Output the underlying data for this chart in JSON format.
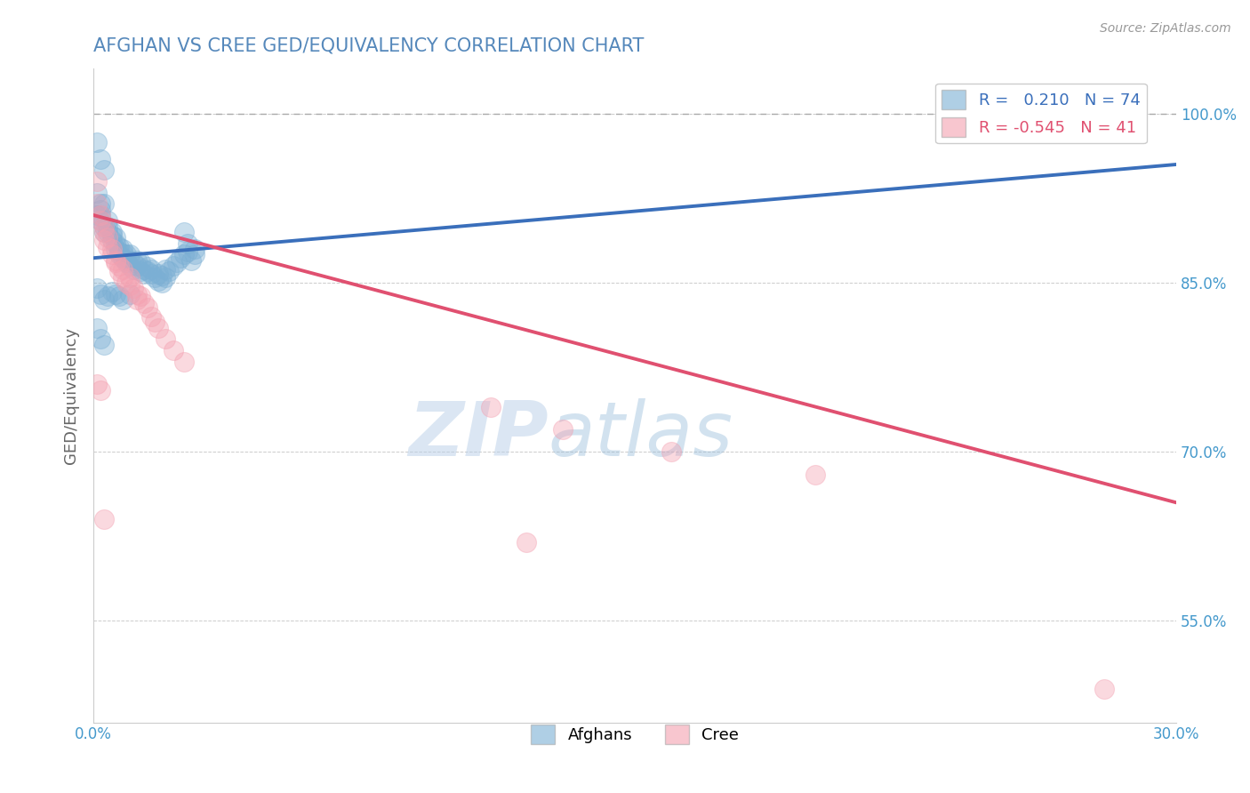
{
  "title": "AFGHAN VS CREE GED/EQUIVALENCY CORRELATION CHART",
  "source": "Source: ZipAtlas.com",
  "ylabel": "GED/Equivalency",
  "xlim": [
    0.0,
    0.3
  ],
  "ylim": [
    0.46,
    1.04
  ],
  "afghan_color": "#7bafd4",
  "cree_color": "#f4a0b0",
  "afghan_R": 0.21,
  "afghan_N": 74,
  "cree_R": -0.545,
  "cree_N": 41,
  "legend_label_afghan": "Afghans",
  "legend_label_cree": "Cree",
  "watermark_zip": "ZIP",
  "watermark_atlas": "atlas",
  "title_color": "#5588bb",
  "axis_label_color": "#666666",
  "tick_color": "#4499cc",
  "ytick_positions": [
    0.55,
    0.7,
    0.85,
    1.0
  ],
  "ytick_labels": [
    "55.0%",
    "70.0%",
    "85.0%",
    "100.0%"
  ],
  "afghan_line": [
    [
      0.0,
      0.872
    ],
    [
      0.3,
      0.955
    ]
  ],
  "cree_line": [
    [
      0.0,
      0.91
    ],
    [
      0.3,
      0.655
    ]
  ],
  "dashed_line_y": 1.0,
  "afghan_scatter": [
    [
      0.001,
      0.975
    ],
    [
      0.002,
      0.96
    ],
    [
      0.003,
      0.95
    ],
    [
      0.001,
      0.93
    ],
    [
      0.002,
      0.92
    ],
    [
      0.002,
      0.915
    ],
    [
      0.001,
      0.91
    ],
    [
      0.002,
      0.91
    ],
    [
      0.003,
      0.92
    ],
    [
      0.002,
      0.905
    ],
    [
      0.003,
      0.9
    ],
    [
      0.004,
      0.905
    ],
    [
      0.003,
      0.895
    ],
    [
      0.004,
      0.895
    ],
    [
      0.004,
      0.9
    ],
    [
      0.005,
      0.892
    ],
    [
      0.005,
      0.888
    ],
    [
      0.005,
      0.895
    ],
    [
      0.006,
      0.885
    ],
    [
      0.006,
      0.89
    ],
    [
      0.006,
      0.88
    ],
    [
      0.007,
      0.882
    ],
    [
      0.007,
      0.878
    ],
    [
      0.007,
      0.875
    ],
    [
      0.008,
      0.88
    ],
    [
      0.008,
      0.876
    ],
    [
      0.008,
      0.872
    ],
    [
      0.009,
      0.875
    ],
    [
      0.009,
      0.87
    ],
    [
      0.009,
      0.868
    ],
    [
      0.01,
      0.87
    ],
    [
      0.01,
      0.875
    ],
    [
      0.01,
      0.865
    ],
    [
      0.011,
      0.868
    ],
    [
      0.011,
      0.862
    ],
    [
      0.012,
      0.87
    ],
    [
      0.012,
      0.865
    ],
    [
      0.013,
      0.868
    ],
    [
      0.013,
      0.86
    ],
    [
      0.014,
      0.862
    ],
    [
      0.014,
      0.858
    ],
    [
      0.015,
      0.864
    ],
    [
      0.015,
      0.86
    ],
    [
      0.016,
      0.858
    ],
    [
      0.016,
      0.862
    ],
    [
      0.017,
      0.855
    ],
    [
      0.018,
      0.858
    ],
    [
      0.018,
      0.852
    ],
    [
      0.019,
      0.856
    ],
    [
      0.019,
      0.85
    ],
    [
      0.02,
      0.855
    ],
    [
      0.02,
      0.862
    ],
    [
      0.021,
      0.86
    ],
    [
      0.022,
      0.865
    ],
    [
      0.023,
      0.868
    ],
    [
      0.024,
      0.872
    ],
    [
      0.025,
      0.875
    ],
    [
      0.026,
      0.878
    ],
    [
      0.027,
      0.87
    ],
    [
      0.028,
      0.875
    ],
    [
      0.025,
      0.895
    ],
    [
      0.026,
      0.885
    ],
    [
      0.028,
      0.88
    ],
    [
      0.001,
      0.845
    ],
    [
      0.002,
      0.84
    ],
    [
      0.003,
      0.835
    ],
    [
      0.004,
      0.838
    ],
    [
      0.005,
      0.842
    ],
    [
      0.006,
      0.84
    ],
    [
      0.007,
      0.838
    ],
    [
      0.008,
      0.835
    ],
    [
      0.01,
      0.84
    ],
    [
      0.001,
      0.81
    ],
    [
      0.002,
      0.8
    ],
    [
      0.003,
      0.795
    ]
  ],
  "cree_scatter": [
    [
      0.001,
      0.94
    ],
    [
      0.001,
      0.92
    ],
    [
      0.002,
      0.91
    ],
    [
      0.002,
      0.905
    ],
    [
      0.003,
      0.9
    ],
    [
      0.003,
      0.895
    ],
    [
      0.003,
      0.888
    ],
    [
      0.004,
      0.89
    ],
    [
      0.004,
      0.882
    ],
    [
      0.005,
      0.88
    ],
    [
      0.005,
      0.875
    ],
    [
      0.006,
      0.87
    ],
    [
      0.006,
      0.868
    ],
    [
      0.007,
      0.865
    ],
    [
      0.007,
      0.86
    ],
    [
      0.008,
      0.862
    ],
    [
      0.008,
      0.855
    ],
    [
      0.009,
      0.85
    ],
    [
      0.01,
      0.848
    ],
    [
      0.01,
      0.855
    ],
    [
      0.011,
      0.845
    ],
    [
      0.012,
      0.84
    ],
    [
      0.012,
      0.835
    ],
    [
      0.013,
      0.838
    ],
    [
      0.014,
      0.832
    ],
    [
      0.015,
      0.828
    ],
    [
      0.016,
      0.82
    ],
    [
      0.017,
      0.815
    ],
    [
      0.018,
      0.81
    ],
    [
      0.02,
      0.8
    ],
    [
      0.022,
      0.79
    ],
    [
      0.025,
      0.78
    ],
    [
      0.001,
      0.76
    ],
    [
      0.002,
      0.755
    ],
    [
      0.11,
      0.74
    ],
    [
      0.13,
      0.72
    ],
    [
      0.16,
      0.7
    ],
    [
      0.2,
      0.68
    ],
    [
      0.003,
      0.64
    ],
    [
      0.12,
      0.62
    ],
    [
      0.28,
      0.49
    ]
  ]
}
